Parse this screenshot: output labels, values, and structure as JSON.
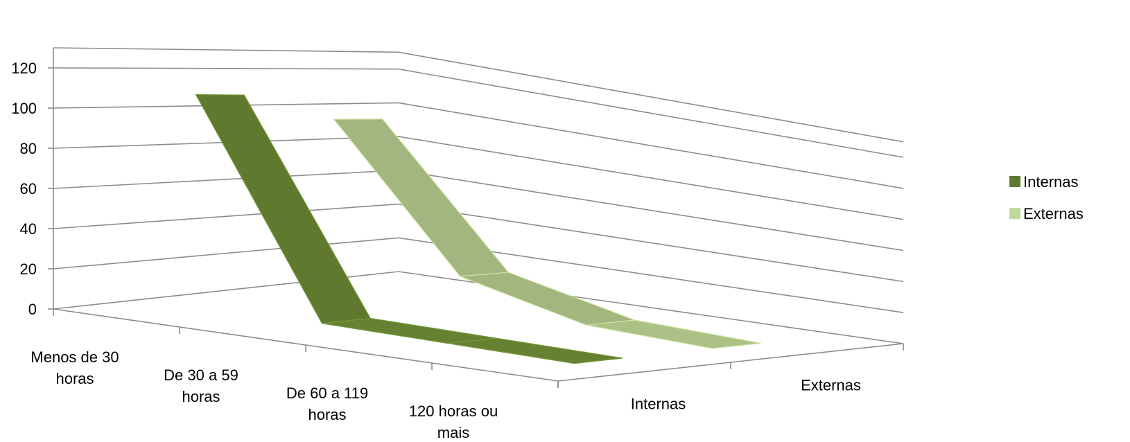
{
  "chart_data": {
    "type": "area",
    "view": "3d",
    "title": "",
    "categories": [
      "Menos de 30 horas",
      "De 30 a 59 horas",
      "De 60 a 119 horas",
      "120 horas ou mais"
    ],
    "category_lines": [
      [
        "Menos de 30",
        "horas"
      ],
      [
        "De 30 a 59",
        "horas"
      ],
      [
        "De 60 a 119",
        "horas"
      ],
      [
        "120 horas ou",
        "mais"
      ]
    ],
    "series": [
      {
        "name": "Internas",
        "values": [
          110,
          2,
          1,
          0
        ]
      },
      {
        "name": "Externas",
        "values": [
          97,
          20,
          3,
          0
        ]
      }
    ],
    "depth_labels": [
      "Internas",
      "Externas"
    ],
    "yticks": [
      0,
      20,
      40,
      60,
      80,
      100,
      120
    ],
    "ylim": [
      0,
      130
    ],
    "grid": true,
    "legend_position": "right",
    "colors": {
      "Internas": "#5f7a2e",
      "Externas": "#a3b67f",
      "Internas_legend": "#5f7a2e",
      "Externas_legend": "#c0d89a",
      "axis": "#8c8c8c",
      "grid": "#8c8c8c"
    }
  }
}
